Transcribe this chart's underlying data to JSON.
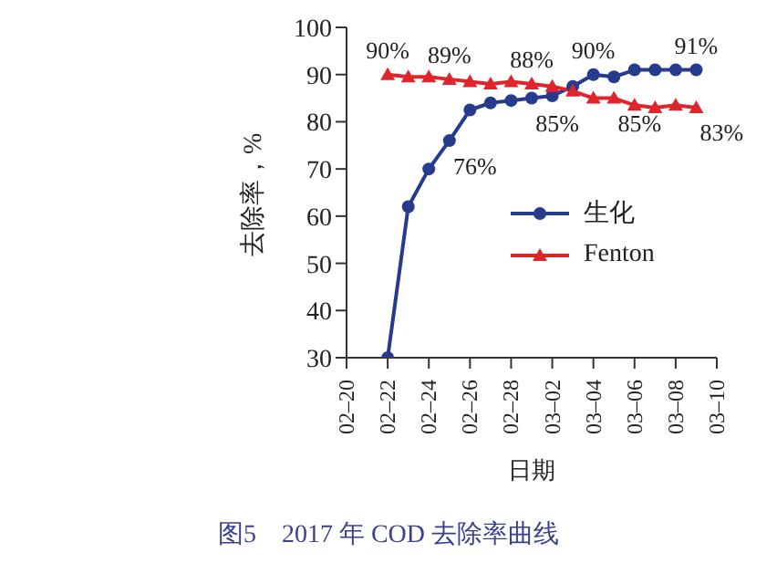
{
  "chart_data": {
    "type": "line",
    "xlabel": "日期",
    "ylabel": "去除率，%",
    "x": [
      "--02-22",
      "--02-23",
      "--02-24",
      "--02-25",
      "--02-26",
      "--02-27",
      "--02-28",
      "--03-01",
      "--03-02",
      "--03-03",
      "--03-04",
      "--03-05",
      "--03-06",
      "--03-07",
      "--03-08",
      "--03-09"
    ],
    "series": [
      {
        "name": "生化",
        "color": "#263a8e",
        "marker": "circle",
        "values": [
          30,
          62,
          70,
          76,
          82.5,
          84,
          84.5,
          85,
          85.5,
          87.5,
          90,
          89.5,
          91,
          91,
          91,
          91
        ]
      },
      {
        "name": "Fenton",
        "color": "#e0242c",
        "marker": "triangle",
        "values": [
          90,
          89.5,
          89.5,
          89,
          88.5,
          88,
          88.5,
          88,
          87.5,
          86.5,
          85,
          85,
          83.5,
          83,
          83.5,
          83
        ]
      }
    ],
    "xlim": [
      "--02-20",
      "--03-10"
    ],
    "xticks": [
      {
        "value": "--02-20",
        "label": "02–20"
      },
      {
        "value": "--02-22",
        "label": "02–22"
      },
      {
        "value": "--02-24",
        "label": "02–24"
      },
      {
        "value": "--02-26",
        "label": "02–26"
      },
      {
        "value": "--02-28",
        "label": "02–28"
      },
      {
        "value": "--03-02",
        "label": "03–02"
      },
      {
        "value": "--03-04",
        "label": "03–04"
      },
      {
        "value": "--03-06",
        "label": "03–06"
      },
      {
        "value": "--03-08",
        "label": "03–08"
      },
      {
        "value": "--03-10",
        "label": "03–10"
      }
    ],
    "ylim": [
      30,
      100
    ],
    "yticks": [
      30,
      40,
      50,
      60,
      70,
      80,
      90,
      100
    ],
    "grid": false,
    "legend": "right",
    "line_style": "solid",
    "annotations": [
      {
        "text": "90%",
        "x": "--02-22",
        "y": 90
      },
      {
        "text": "89%",
        "x": "--02-25",
        "y": 89
      },
      {
        "text": "88%",
        "x": "--03-01",
        "y": 88
      },
      {
        "text": "90%",
        "x": "--03-04",
        "y": 90
      },
      {
        "text": "91%",
        "x": "--03-09",
        "y": 91
      },
      {
        "text": "76%",
        "x": "--02-25",
        "y": 76
      },
      {
        "text": "85%",
        "x": "--03-01",
        "y": 85
      },
      {
        "text": "85%",
        "x": "--03-05",
        "y": 85
      },
      {
        "text": "83%",
        "x": "--03-09",
        "y": 83
      },
      "图5　2017 年 COD 去除率曲线"
    ]
  }
}
